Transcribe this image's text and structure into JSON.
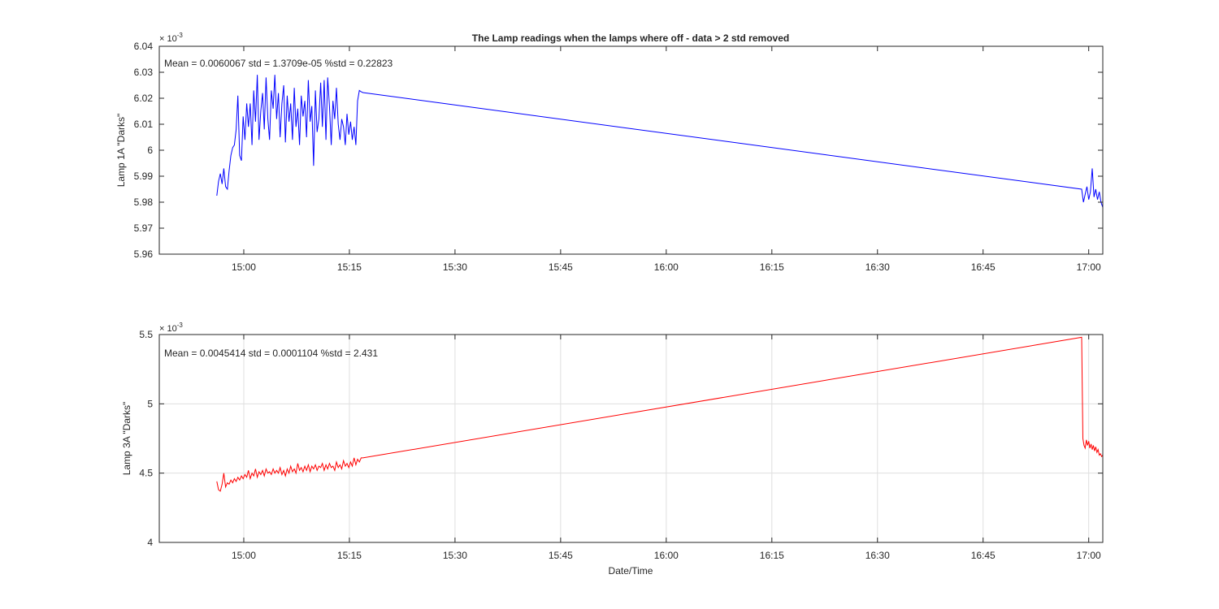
{
  "chart_data": [
    {
      "type": "line",
      "title": "The Lamp readings when the lamps where off - data > 2 std removed",
      "xlabel": "",
      "ylabel": "Lamp 1A \"Darks\"",
      "exponent_label": "× 10",
      "exponent_power": "-3",
      "annotation": "Mean = 0.0060067  std = 1.3709e-05  %std = 0.22823",
      "x_tick_labels": [
        "15:00",
        "15:15",
        "15:30",
        "15:45",
        "16:00",
        "16:15",
        "16:30",
        "16:45",
        "17:00"
      ],
      "y_tick_labels": [
        "5.96",
        "5.97",
        "5.98",
        "5.99",
        "6",
        "6.01",
        "6.02",
        "6.03",
        "6.04"
      ],
      "xlim": [
        "14:48",
        "17:02"
      ],
      "ylim": [
        5.96,
        6.04
      ],
      "grid": false,
      "series": [
        {
          "color": "#0000ff",
          "x": [
            "14:56:10",
            "14:56:25",
            "14:56:40",
            "14:56:55",
            "14:57:10",
            "14:57:25",
            "14:57:40",
            "14:57:55",
            "14:58:10",
            "14:58:25",
            "14:58:40",
            "14:58:55",
            "14:59:10",
            "14:59:25",
            "14:59:40",
            "14:59:55",
            "15:00:10",
            "15:00:25",
            "15:00:40",
            "15:00:55",
            "15:01:10",
            "15:01:25",
            "15:01:40",
            "15:01:55",
            "15:02:10",
            "15:02:25",
            "15:02:40",
            "15:02:55",
            "15:03:10",
            "15:03:25",
            "15:03:40",
            "15:03:55",
            "15:04:10",
            "15:04:25",
            "15:04:40",
            "15:04:55",
            "15:05:10",
            "15:05:25",
            "15:05:40",
            "15:05:55",
            "15:06:10",
            "15:06:25",
            "15:06:40",
            "15:06:55",
            "15:07:10",
            "15:07:25",
            "15:07:40",
            "15:07:55",
            "15:08:10",
            "15:08:25",
            "15:08:40",
            "15:08:55",
            "15:09:10",
            "15:09:25",
            "15:09:40",
            "15:09:55",
            "15:10:10",
            "15:10:25",
            "15:10:40",
            "15:10:55",
            "15:11:10",
            "15:11:25",
            "15:11:40",
            "15:11:55",
            "15:12:10",
            "15:12:25",
            "15:12:40",
            "15:12:55",
            "15:13:10",
            "15:13:25",
            "15:13:40",
            "15:13:55",
            "15:14:10",
            "15:14:25",
            "15:14:40",
            "15:14:55",
            "15:15:10",
            "15:15:25",
            "15:15:40",
            "15:15:55",
            "15:16:10",
            "15:16:25",
            "15:16:40",
            "15:16:55",
            "16:59:00",
            "16:59:15",
            "16:59:30",
            "16:59:45",
            "17:00:00",
            "17:00:15",
            "17:00:30",
            "17:00:45",
            "17:01:00",
            "17:01:15",
            "17:01:30",
            "17:01:45",
            "17:02:00"
          ],
          "y": [
            5.9825,
            5.988,
            5.991,
            5.987,
            5.993,
            5.986,
            5.985,
            5.992,
            5.998,
            6.001,
            6.002,
            6.008,
            6.021,
            5.998,
            5.996,
            6.013,
            6.004,
            6.018,
            6.009,
            6.018,
            6.002,
            6.023,
            6.011,
            6.029,
            6.004,
            6.015,
            6.022,
            6.008,
            6.028,
            6.012,
            6.004,
            6.023,
            6.016,
            6.029,
            6.012,
            6.022,
            6.005,
            6.018,
            6.025,
            6.003,
            6.021,
            6.011,
            6.018,
            6.004,
            6.024,
            6.009,
            6.016,
            6.002,
            6.021,
            6.013,
            6.019,
            6.005,
            6.027,
            6.011,
            6.017,
            5.994,
            6.023,
            6.007,
            6.012,
            6.026,
            6.009,
            6.027,
            6.004,
            6.028,
            6.017,
            6.002,
            6.019,
            6.012,
            6.024,
            6.01,
            6.004,
            6.012,
            6.009,
            6.002,
            6.014,
            6.006,
            6.011,
            6.004,
            6.009,
            6.002,
            6.019,
            6.023,
            6.0225,
            6.0222,
            5.985,
            5.98,
            5.983,
            5.986,
            5.981,
            5.984,
            5.993,
            5.982,
            5.985,
            5.981,
            5.984,
            5.98,
            5.978
          ]
        }
      ]
    },
    {
      "type": "line",
      "title": "",
      "xlabel": "Date/Time",
      "ylabel": "Lamp 3A \"Darks\"",
      "exponent_label": "× 10",
      "exponent_power": "-3",
      "annotation": "Mean = 0.0045414  std = 0.0001104  %std = 2.431",
      "x_tick_labels": [
        "15:00",
        "15:15",
        "15:30",
        "15:45",
        "16:00",
        "16:15",
        "16:30",
        "16:45",
        "17:00"
      ],
      "y_tick_labels": [
        "4",
        "4.5",
        "5",
        "5.5"
      ],
      "xlim": [
        "14:48",
        "17:02"
      ],
      "ylim": [
        4.0,
        5.5
      ],
      "grid": true,
      "series": [
        {
          "color": "#ff0000",
          "x": [
            "14:56:10",
            "14:56:25",
            "14:56:40",
            "14:56:55",
            "14:57:10",
            "14:57:25",
            "14:57:40",
            "14:57:55",
            "14:58:10",
            "14:58:25",
            "14:58:40",
            "14:58:55",
            "14:59:10",
            "14:59:25",
            "14:59:40",
            "14:59:55",
            "15:00:10",
            "15:00:25",
            "15:00:40",
            "15:00:55",
            "15:01:10",
            "15:01:25",
            "15:01:40",
            "15:01:55",
            "15:02:10",
            "15:02:25",
            "15:02:40",
            "15:02:55",
            "15:03:10",
            "15:03:25",
            "15:03:40",
            "15:03:55",
            "15:04:10",
            "15:04:25",
            "15:04:40",
            "15:04:55",
            "15:05:10",
            "15:05:25",
            "15:05:40",
            "15:05:55",
            "15:06:10",
            "15:06:25",
            "15:06:40",
            "15:06:55",
            "15:07:10",
            "15:07:25",
            "15:07:40",
            "15:07:55",
            "15:08:10",
            "15:08:25",
            "15:08:40",
            "15:08:55",
            "15:09:10",
            "15:09:25",
            "15:09:40",
            "15:09:55",
            "15:10:10",
            "15:10:25",
            "15:10:40",
            "15:10:55",
            "15:11:10",
            "15:11:25",
            "15:11:40",
            "15:11:55",
            "15:12:10",
            "15:12:25",
            "15:12:40",
            "15:12:55",
            "15:13:10",
            "15:13:25",
            "15:13:40",
            "15:13:55",
            "15:14:10",
            "15:14:25",
            "15:14:40",
            "15:14:55",
            "15:15:10",
            "15:15:25",
            "15:15:40",
            "15:15:55",
            "15:16:10",
            "15:16:25",
            "15:16:40",
            "15:16:55",
            "16:59:00",
            "16:59:10",
            "16:59:20",
            "16:59:30",
            "16:59:40",
            "16:59:50",
            "17:00:00",
            "17:00:10",
            "17:00:20",
            "17:00:30",
            "17:00:40",
            "17:00:50",
            "17:01:00",
            "17:01:10",
            "17:01:20",
            "17:01:30",
            "17:01:40",
            "17:01:50",
            "17:02:00"
          ],
          "y": [
            4.44,
            4.38,
            4.37,
            4.42,
            4.5,
            4.4,
            4.43,
            4.42,
            4.45,
            4.43,
            4.46,
            4.44,
            4.47,
            4.45,
            4.48,
            4.46,
            4.49,
            4.47,
            4.52,
            4.46,
            4.5,
            4.48,
            4.53,
            4.47,
            4.51,
            4.49,
            4.52,
            4.48,
            4.53,
            4.5,
            4.51,
            4.49,
            4.53,
            4.5,
            4.52,
            4.5,
            4.54,
            4.49,
            4.52,
            4.48,
            4.53,
            4.5,
            4.55,
            4.51,
            4.53,
            4.5,
            4.57,
            4.52,
            4.54,
            4.51,
            4.55,
            4.52,
            4.56,
            4.51,
            4.55,
            4.53,
            4.56,
            4.52,
            4.55,
            4.54,
            4.57,
            4.52,
            4.56,
            4.53,
            4.57,
            4.54,
            4.55,
            4.52,
            4.58,
            4.54,
            4.56,
            4.53,
            4.59,
            4.55,
            4.57,
            4.54,
            4.58,
            4.55,
            4.61,
            4.56,
            4.6,
            4.58,
            4.61,
            4.61,
            5.48,
            4.75,
            4.7,
            4.68,
            4.74,
            4.7,
            4.73,
            4.68,
            4.71,
            4.67,
            4.7,
            4.66,
            4.69,
            4.65,
            4.67,
            4.63,
            4.64,
            4.62,
            4.63
          ]
        }
      ]
    }
  ]
}
